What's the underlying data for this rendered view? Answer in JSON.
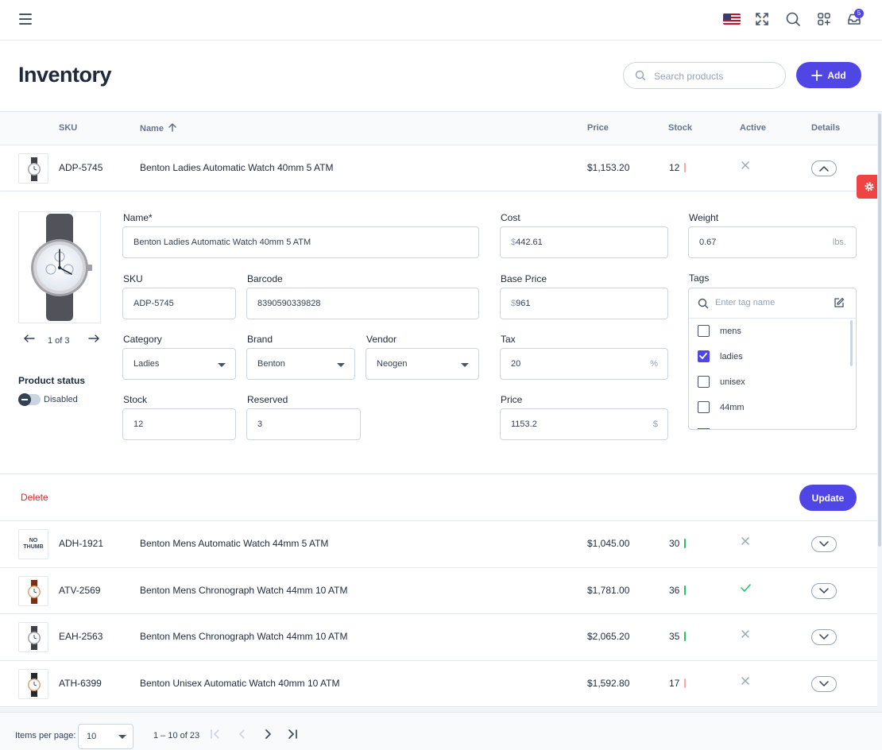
{
  "topbar": {
    "notification_count": "5",
    "icons": [
      "menu-icon",
      "us-flag-icon",
      "fullscreen-icon",
      "search-icon",
      "apps-icon",
      "inbox-icon"
    ]
  },
  "header": {
    "title": "Inventory",
    "search_placeholder": "Search products",
    "add_label": "Add"
  },
  "table": {
    "columns": {
      "sku": "SKU",
      "name": "Name",
      "price": "Price",
      "stock": "Stock",
      "active": "Active",
      "details": "Details"
    },
    "expanded_row": {
      "sku": "ADP-5745",
      "name": "Benton Ladies Automatic Watch 40mm 5 ATM",
      "price": "$1,153.20",
      "stock": "12",
      "active": false
    },
    "rows": [
      {
        "thumb": "watch",
        "sku": "ADH-1921",
        "name": "Benton Mens Automatic Watch 44mm 5 ATM",
        "price": "$1,045.00",
        "stock": "30",
        "stock_level": "ok",
        "active": false
      },
      {
        "thumb": "watch",
        "sku": "ATV-2569",
        "name": "Benton Mens Chronograph Watch 44mm 10 ATM",
        "price": "$1,781.00",
        "stock": "36",
        "stock_level": "ok",
        "active": true
      },
      {
        "thumb": "watch",
        "sku": "EAH-2563",
        "name": "Benton Mens Chronograph Watch 44mm 10 ATM",
        "price": "$2,065.20",
        "stock": "35",
        "stock_level": "ok",
        "active": false
      },
      {
        "thumb": "watch",
        "sku": "ATH-6399",
        "name": "Benton Unisex Automatic Watch 40mm 10 ATM",
        "price": "$1,592.80",
        "stock": "17",
        "stock_level": "low",
        "active": false
      }
    ],
    "no_thumb_text": "NO THUMB"
  },
  "details": {
    "image_pager": "1 of 3",
    "status_label": "Product status",
    "status_value": "Disabled",
    "fields": {
      "name_label": "Name*",
      "name_value": "Benton Ladies Automatic Watch 40mm 5 ATM",
      "sku_label": "SKU",
      "sku_value": "ADP-5745",
      "barcode_label": "Barcode",
      "barcode_value": "8390590339828",
      "category_label": "Category",
      "category_value": "Ladies",
      "brand_label": "Brand",
      "brand_value": "Benton",
      "vendor_label": "Vendor",
      "vendor_value": "Neogen",
      "stock_label": "Stock",
      "stock_value": "12",
      "reserved_label": "Reserved",
      "reserved_value": "3",
      "cost_label": "Cost",
      "cost_prefix": "$",
      "cost_value": "442.61",
      "base_price_label": "Base Price",
      "base_price_prefix": "$",
      "base_price_value": "961",
      "tax_label": "Tax",
      "tax_value": "20",
      "tax_suffix": "%",
      "price_label": "Price",
      "price_value": "1153.2",
      "price_suffix": "$",
      "weight_label": "Weight",
      "weight_value": "0.67",
      "weight_suffix": "lbs."
    },
    "tags": {
      "label": "Tags",
      "placeholder": "Enter tag name",
      "items": [
        {
          "label": "mens",
          "checked": false
        },
        {
          "label": "ladies",
          "checked": true
        },
        {
          "label": "unisex",
          "checked": false
        },
        {
          "label": "44mm",
          "checked": false
        }
      ]
    },
    "delete_label": "Delete",
    "update_label": "Update"
  },
  "paginator": {
    "items_per_page_label": "Items per page:",
    "items_per_page_value": "10",
    "range_label": "1 – 10 of 23"
  },
  "colors": {
    "primary": "#4f46e5",
    "danger": "#dc2626",
    "success": "#22c55e",
    "settings_fab": "#ef4444"
  }
}
